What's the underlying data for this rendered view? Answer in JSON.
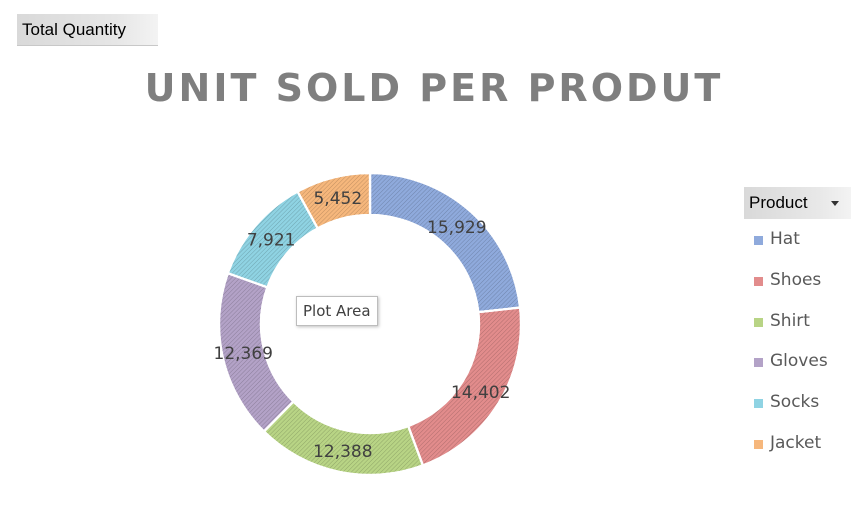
{
  "field_button": {
    "label": "Total Quantity"
  },
  "tooltip": {
    "text": "Plot Area"
  },
  "legend": {
    "header": "Product",
    "dropdown_icon": "chevron-down-icon"
  },
  "colors": {
    "Hat": "#8faadc",
    "Shoes": "#e28c8c",
    "Shirt": "#b8d485",
    "Gloves": "#b3a2c7",
    "Socks": "#8fd3e3",
    "Jacket": "#f6b77c"
  },
  "chart_data": {
    "type": "pie",
    "variant": "doughnut",
    "title": "UNIT SOLD PER PRODUT",
    "legend_position": "right",
    "categories": [
      "Hat",
      "Shoes",
      "Shirt",
      "Gloves",
      "Socks",
      "Jacket"
    ],
    "values": [
      15929,
      14402,
      12388,
      12369,
      7921,
      5452
    ],
    "data_labels": [
      "15,929",
      "14,402",
      "12,388",
      "12,369",
      "7,921",
      "5,452"
    ]
  }
}
